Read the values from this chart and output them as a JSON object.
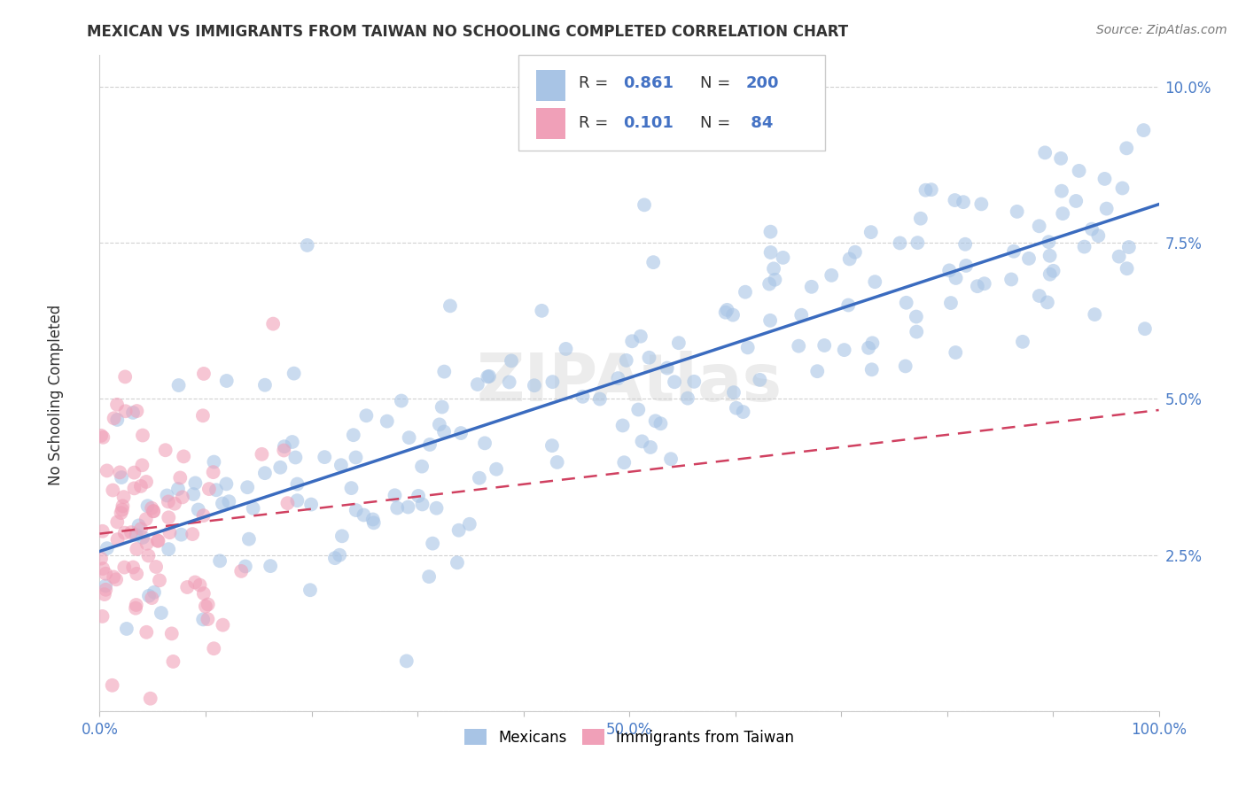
{
  "title": "MEXICAN VS IMMIGRANTS FROM TAIWAN NO SCHOOLING COMPLETED CORRELATION CHART",
  "source": "Source: ZipAtlas.com",
  "ylabel": "No Schooling Completed",
  "watermark": "ZIPAtlas",
  "blue_color": "#a8c4e5",
  "pink_color": "#f0a0b8",
  "blue_line_color": "#3a6bbf",
  "pink_line_color": "#d04060",
  "pink_line_dash": [
    6,
    4
  ],
  "xlim": [
    0,
    1.0
  ],
  "ylim": [
    0,
    0.105
  ],
  "xticks": [
    0,
    0.1,
    0.2,
    0.3,
    0.4,
    0.5,
    0.6,
    0.7,
    0.8,
    0.9,
    1.0
  ],
  "yticks": [
    0,
    0.025,
    0.05,
    0.075,
    0.1
  ],
  "ytick_labels": [
    "",
    "2.5%",
    "5.0%",
    "7.5%",
    "10.0%"
  ],
  "xtick_labels": [
    "0.0%",
    "",
    "",
    "",
    "",
    "50.0%",
    "",
    "",
    "",
    "",
    "100.0%"
  ],
  "tick_color": "#4a7cc7",
  "blue_R": 0.861,
  "pink_R": 0.101,
  "blue_N": 200,
  "pink_N": 84,
  "seed": 42
}
